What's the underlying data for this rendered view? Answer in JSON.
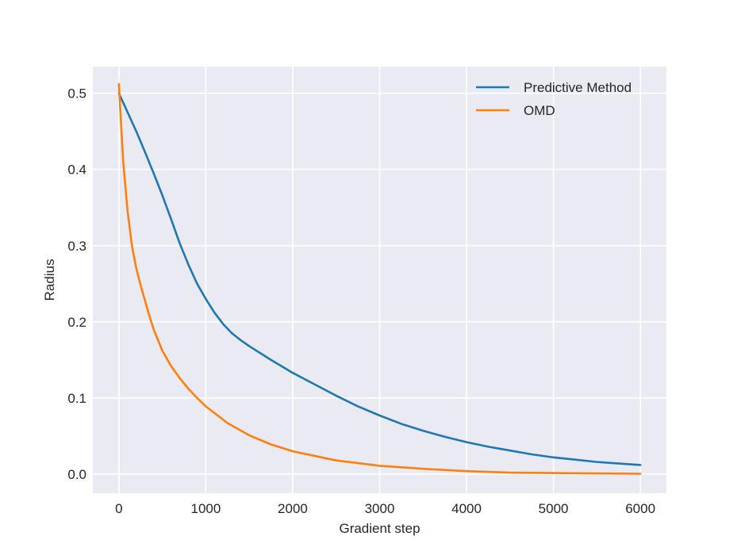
{
  "chart_data": {
    "type": "line",
    "title": "",
    "xlabel": "Gradient step",
    "ylabel": "Radius",
    "xlim": [
      -300,
      6300
    ],
    "ylim": [
      -0.025,
      0.535
    ],
    "xticks": [
      0,
      1000,
      2000,
      3000,
      4000,
      5000,
      6000
    ],
    "xtick_labels": [
      "0",
      "1000",
      "2000",
      "3000",
      "4000",
      "5000",
      "6000"
    ],
    "yticks": [
      0.0,
      0.1,
      0.2,
      0.3,
      0.4,
      0.5
    ],
    "ytick_labels": [
      "0.0",
      "0.1",
      "0.2",
      "0.3",
      "0.4",
      "0.5"
    ],
    "grid": true,
    "legend_position": "top-right",
    "background_color": "#eaeaf2",
    "grid_color": "#ffffff",
    "series": [
      {
        "name": "Predictive Method",
        "color": "#1f77b4",
        "x": [
          0,
          100,
          200,
          300,
          400,
          500,
          600,
          700,
          800,
          900,
          1000,
          1100,
          1200,
          1300,
          1400,
          1500,
          1750,
          2000,
          2250,
          2500,
          2750,
          3000,
          3250,
          3500,
          3750,
          4000,
          4250,
          4500,
          4750,
          5000,
          5250,
          5500,
          5750,
          6000
        ],
        "y": [
          0.5,
          0.475,
          0.45,
          0.423,
          0.395,
          0.366,
          0.335,
          0.303,
          0.275,
          0.25,
          0.23,
          0.212,
          0.197,
          0.185,
          0.176,
          0.168,
          0.15,
          0.133,
          0.118,
          0.103,
          0.089,
          0.077,
          0.066,
          0.057,
          0.049,
          0.042,
          0.036,
          0.031,
          0.026,
          0.022,
          0.019,
          0.016,
          0.014,
          0.012
        ]
      },
      {
        "name": "OMD",
        "color": "#ff7f0e",
        "x": [
          0,
          25,
          50,
          100,
          150,
          200,
          250,
          300,
          350,
          400,
          500,
          600,
          700,
          800,
          900,
          1000,
          1250,
          1500,
          1750,
          2000,
          2500,
          3000,
          3500,
          4000,
          4500,
          5000,
          5500,
          6000
        ],
        "y": [
          0.512,
          0.46,
          0.41,
          0.345,
          0.3,
          0.27,
          0.248,
          0.228,
          0.208,
          0.19,
          0.162,
          0.142,
          0.126,
          0.112,
          0.1,
          0.089,
          0.067,
          0.051,
          0.039,
          0.03,
          0.018,
          0.011,
          0.007,
          0.004,
          0.002,
          0.0015,
          0.001,
          0.0005
        ]
      }
    ]
  }
}
